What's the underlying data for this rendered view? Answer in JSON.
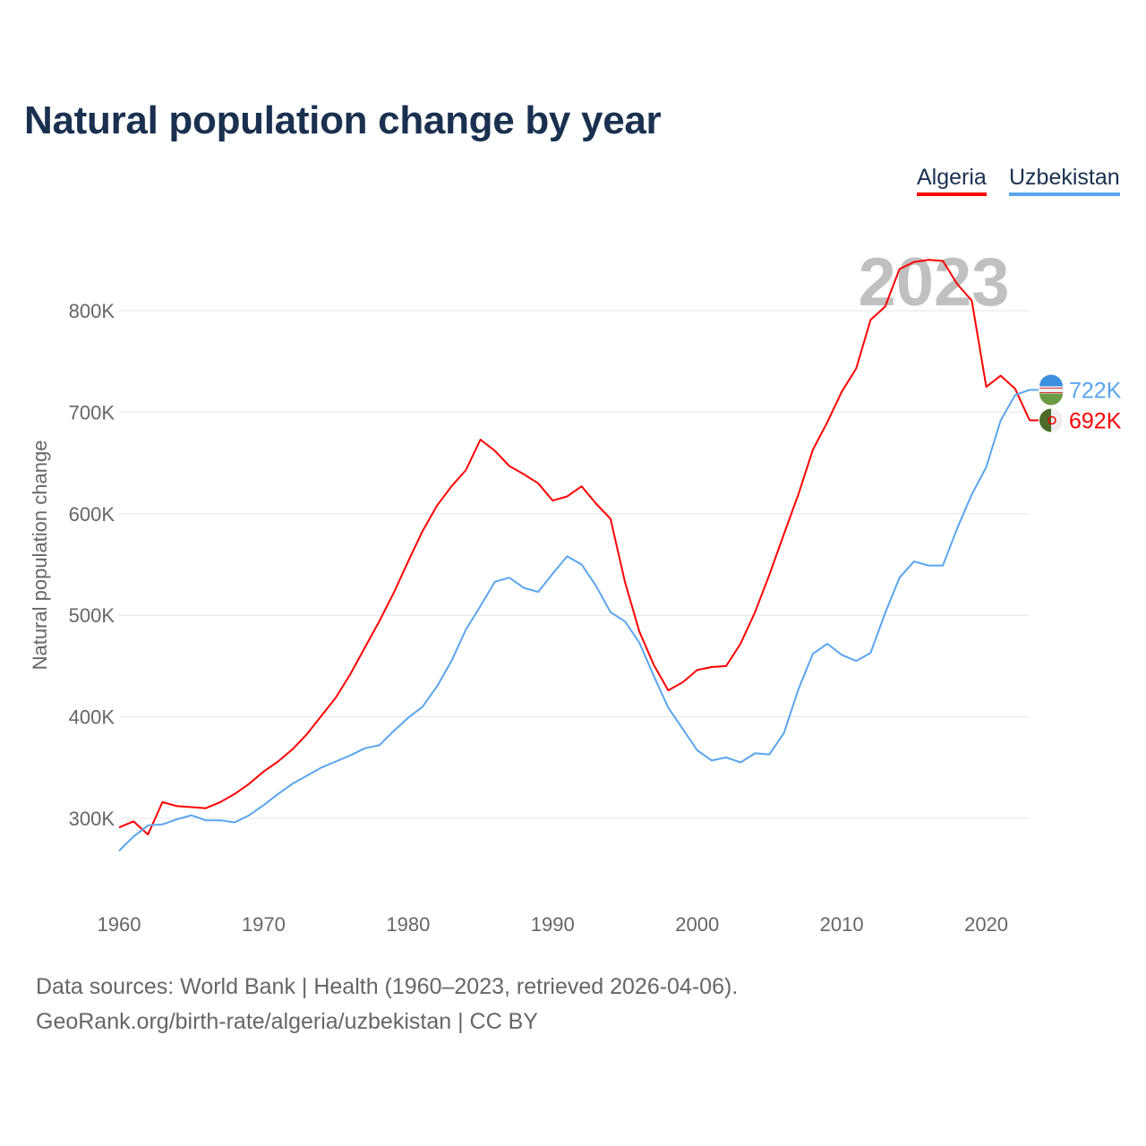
{
  "chart_data": {
    "type": "line",
    "title": "Natural population change by year",
    "xlabel": "",
    "ylabel": "Natural population change",
    "xlim": [
      1960,
      2023
    ],
    "ylim": [
      240000,
      880000
    ],
    "x_ticks": [
      1960,
      1970,
      1980,
      1990,
      2000,
      2010,
      2020
    ],
    "y_ticks": [
      300000,
      400000,
      500000,
      600000,
      700000,
      800000
    ],
    "y_tick_labels": [
      "300K",
      "400K",
      "500K",
      "600K",
      "700K",
      "800K"
    ],
    "grid": "horizontal",
    "legend_position": "top-right",
    "year_label": "2023",
    "x": [
      1960,
      1961,
      1962,
      1963,
      1964,
      1965,
      1966,
      1967,
      1968,
      1969,
      1970,
      1971,
      1972,
      1973,
      1974,
      1975,
      1976,
      1977,
      1978,
      1979,
      1980,
      1981,
      1982,
      1983,
      1984,
      1985,
      1986,
      1987,
      1988,
      1989,
      1990,
      1991,
      1992,
      1993,
      1994,
      1995,
      1996,
      1997,
      1998,
      1999,
      2000,
      2001,
      2002,
      2003,
      2004,
      2005,
      2006,
      2007,
      2008,
      2009,
      2010,
      2011,
      2012,
      2013,
      2014,
      2015,
      2016,
      2017,
      2018,
      2019,
      2020,
      2021,
      2022,
      2023
    ],
    "series": [
      {
        "name": "Algeria",
        "color": "#ff0000",
        "end_label": "692K",
        "values": [
          291000,
          297000,
          284000,
          316000,
          312000,
          311000,
          310000,
          316000,
          324000,
          334000,
          346000,
          356000,
          368000,
          383000,
          401000,
          419000,
          442000,
          468000,
          494000,
          522000,
          553000,
          583000,
          608000,
          627000,
          643000,
          673000,
          662000,
          647000,
          639000,
          630000,
          613000,
          617000,
          627000,
          610000,
          595000,
          533000,
          484000,
          451000,
          426000,
          434000,
          446000,
          449000,
          450000,
          472000,
          503000,
          540000,
          580000,
          619000,
          663000,
          690000,
          720000,
          743000,
          791000,
          804000,
          841000,
          848000,
          850000,
          849000,
          826000,
          810000,
          725000,
          736000,
          723000,
          692000
        ]
      },
      {
        "name": "Uzbekistan",
        "color": "#5aa5ee",
        "end_label": "722K",
        "values": [
          268000,
          282000,
          293000,
          294000,
          299000,
          303000,
          298000,
          298000,
          296000,
          303000,
          313000,
          324000,
          334000,
          342000,
          350000,
          356000,
          362000,
          369000,
          372000,
          386000,
          399000,
          410000,
          430000,
          455000,
          486000,
          509000,
          533000,
          537000,
          527000,
          523000,
          541000,
          558000,
          550000,
          529000,
          503000,
          494000,
          473000,
          440000,
          409000,
          388000,
          367000,
          357000,
          360000,
          355000,
          364000,
          363000,
          384000,
          427000,
          462000,
          472000,
          461000,
          455000,
          463000,
          502000,
          537000,
          553000,
          549000,
          549000,
          586000,
          619000,
          646000,
          692000,
          717000,
          722000
        ]
      }
    ]
  },
  "footer": {
    "source_line": "Data sources: World Bank | Health (1960–2023, retrieved 2026-04-06).",
    "url_line": "GeoRank.org/birth-rate/algeria/uzbekistan | CC BY"
  }
}
